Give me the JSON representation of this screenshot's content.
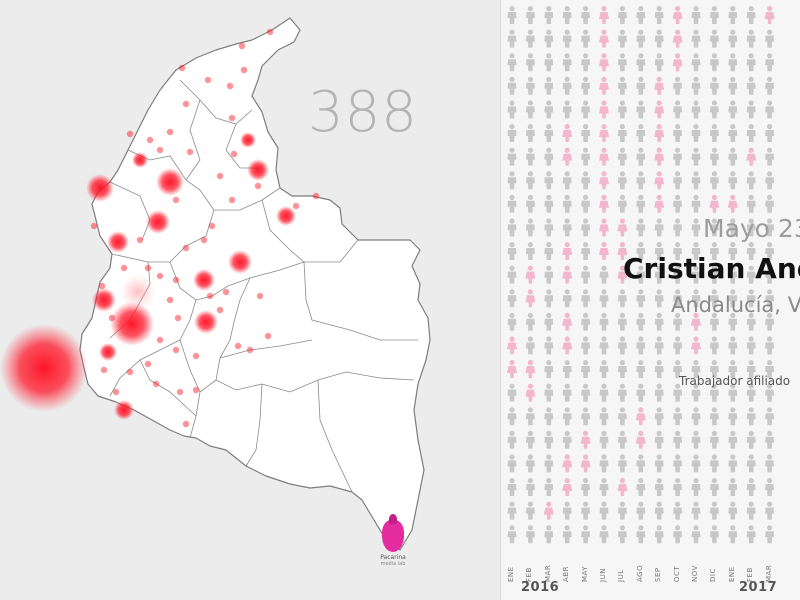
{
  "map": {
    "counter": "388",
    "marker_color": "#ff1020",
    "brand": {
      "name": "Pacarina",
      "subtitle": "media lab",
      "color": "#e42ba0"
    }
  },
  "victims_grid": {
    "figure_color": "#c8c8c8",
    "highlight_color": "#f2b6cd",
    "card": {
      "date": "Mayo 23",
      "name": "Cristian And",
      "place": "Andalucía, Val",
      "role": "Trabajador afiliado"
    },
    "months": [
      "ENE",
      "FEB",
      "MAR",
      "ABR",
      "MAY",
      "JUN",
      "JUL",
      "AGO",
      "SEP",
      "OCT",
      "NOV",
      "DIC",
      "ENE",
      "FEB",
      "MAR"
    ],
    "years": [
      "2016",
      "2017"
    ]
  }
}
